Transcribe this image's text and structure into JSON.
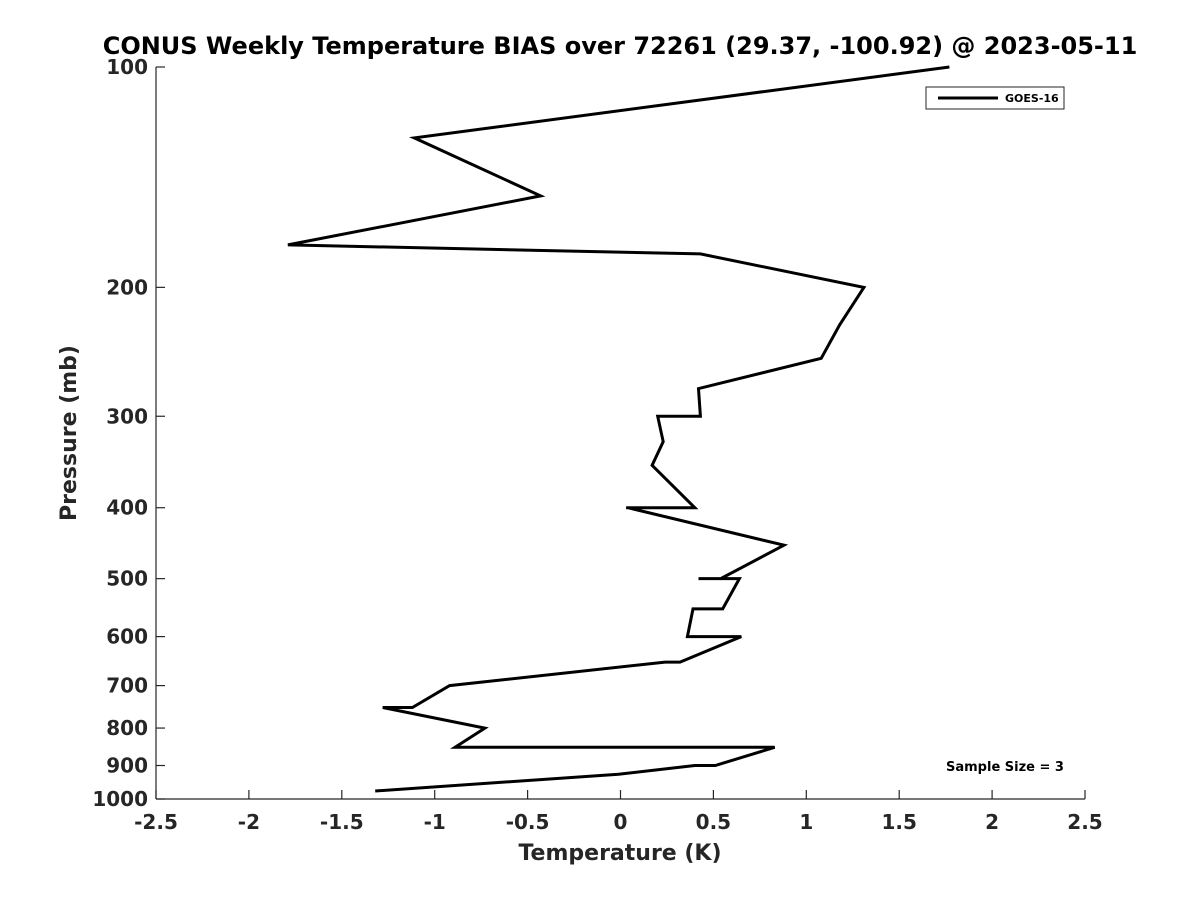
{
  "chart_data": {
    "type": "line",
    "title": "CONUS Weekly Temperature BIAS over 72261 (29.37, -100.92) @ 2023-05-11",
    "xlabel": "Temperature (K)",
    "ylabel": "Pressure (mb)",
    "xlim": [
      -2.5,
      2.5
    ],
    "ylim": [
      1000,
      100
    ],
    "yscale": "log",
    "yreversed": true,
    "x_ticks": [
      -2.5,
      -2,
      -1.5,
      -1,
      -0.5,
      0,
      0.5,
      1,
      1.5,
      2,
      2.5
    ],
    "x_tick_labels": [
      "-2.5",
      "-2",
      "-1.5",
      "-1",
      "-0.5",
      "0",
      "0.5",
      "1",
      "1.5",
      "2",
      "2.5"
    ],
    "y_ticks": [
      100,
      200,
      300,
      400,
      500,
      600,
      700,
      800,
      900,
      1000
    ],
    "y_tick_labels": [
      "100",
      "200",
      "300",
      "400",
      "500",
      "600",
      "700",
      "800",
      "900",
      "1000"
    ],
    "grid": false,
    "legend_position": "top-right",
    "annotation": "Sample Size = 3",
    "series": [
      {
        "name": "GOES-16",
        "color": "#000000",
        "x": [
          1.77,
          -1.11,
          -0.43,
          -1.79,
          0.43,
          1.31,
          1.18,
          1.08,
          0.42,
          0.43,
          0.2,
          0.23,
          0.17,
          0.4,
          0.03,
          0.04,
          0.88,
          0.54,
          0.42,
          0.64,
          0.55,
          0.39,
          0.36,
          0.65,
          0.32,
          0.24,
          -0.92,
          -1.12,
          -1.28,
          -0.73,
          -0.89,
          -0.86,
          0.19,
          0.83,
          0.51,
          0.4,
          -0.01,
          -1.32
        ],
        "y": [
          100,
          125,
          150,
          175,
          180,
          200,
          225,
          250,
          275,
          300,
          300,
          325,
          350,
          400,
          400,
          400,
          450,
          500,
          500,
          500,
          550,
          550,
          600,
          600,
          650,
          650,
          700,
          750,
          750,
          800,
          850,
          850,
          850,
          850,
          900,
          900,
          925,
          975
        ]
      }
    ]
  }
}
